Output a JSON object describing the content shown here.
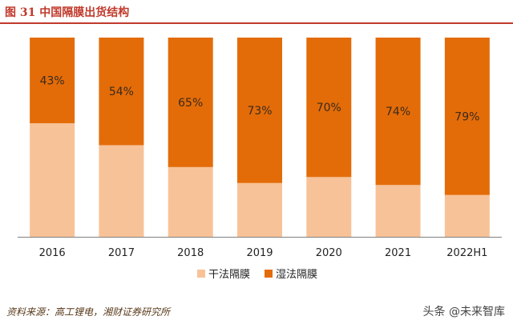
{
  "figure_title": "图 31 中国隔膜出货结构",
  "source": "资料来源：高工锂电，湘财证券研究所",
  "watermark": "头条 @未来智库",
  "colors": {
    "dry": "#f8c298",
    "wet": "#e36c09",
    "title": "#c0392b",
    "axis": "#808080"
  },
  "chart_data": {
    "type": "bar",
    "stacked": true,
    "normalized": true,
    "title": "",
    "xlabel": "",
    "ylabel": "",
    "ylim": [
      0,
      100
    ],
    "grid": false,
    "legend_position": "bottom",
    "categories": [
      "2016",
      "2017",
      "2018",
      "2019",
      "2020",
      "2021",
      "2022H1"
    ],
    "series": [
      {
        "name": "干法隔膜",
        "values": [
          57,
          46,
          35,
          27,
          30,
          26,
          21
        ]
      },
      {
        "name": "湿法隔膜",
        "values": [
          43,
          54,
          65,
          73,
          70,
          74,
          79
        ],
        "data_labels": [
          "43%",
          "54%",
          "65%",
          "73%",
          "70%",
          "74%",
          "79%"
        ]
      }
    ]
  }
}
